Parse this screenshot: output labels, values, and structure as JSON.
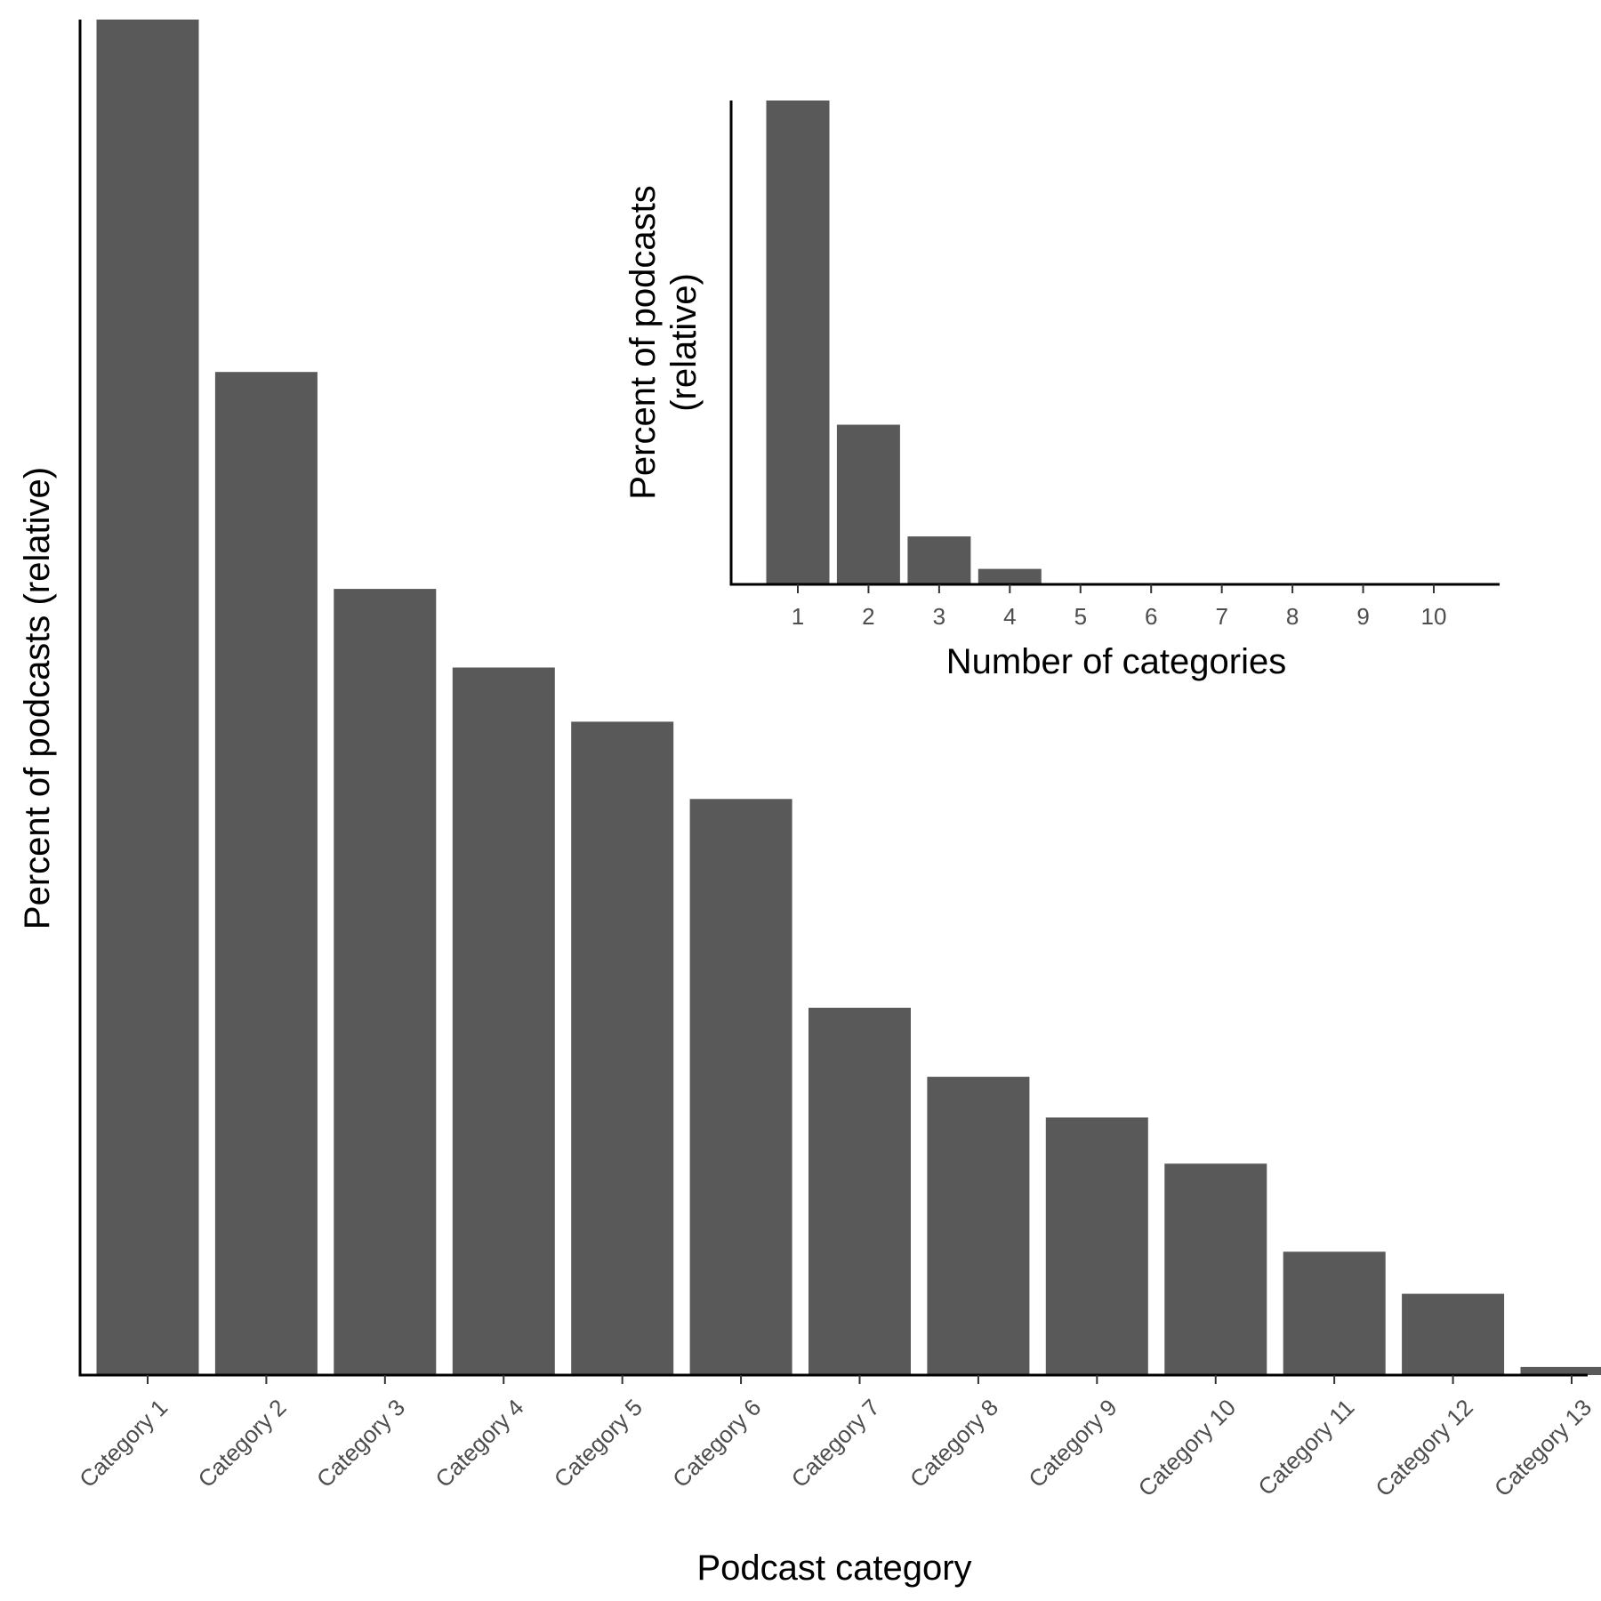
{
  "chart_data": [
    {
      "type": "bar",
      "role": "main",
      "categories": [
        "Category 1",
        "Category 2",
        "Category 3",
        "Category 4",
        "Category 5",
        "Category 6",
        "Category 7",
        "Category 8",
        "Category 9",
        "Category 10",
        "Category 11",
        "Category 12",
        "Category 13"
      ],
      "values": [
        100,
        74,
        58,
        52.2,
        48.2,
        42.5,
        27.1,
        22,
        19,
        15.6,
        9.1,
        6,
        0.6
      ],
      "xlabel": "Podcast category",
      "ylabel": "Percent of podcasts (relative)",
      "ylim": [
        0,
        100
      ],
      "grid": false,
      "bar_color": "#595959"
    },
    {
      "type": "bar",
      "role": "inset",
      "categories": [
        "1",
        "2",
        "3",
        "4",
        "5",
        "6",
        "7",
        "8",
        "9",
        "10"
      ],
      "values": [
        100,
        33,
        9.9,
        3.2,
        0,
        0,
        0,
        0,
        0,
        0
      ],
      "xlabel": "Number of categories",
      "ylabel_lines": [
        "Percent of podcasts",
        "(relative)"
      ],
      "ylim": [
        0,
        100
      ],
      "grid": false,
      "bar_color": "#595959"
    }
  ]
}
